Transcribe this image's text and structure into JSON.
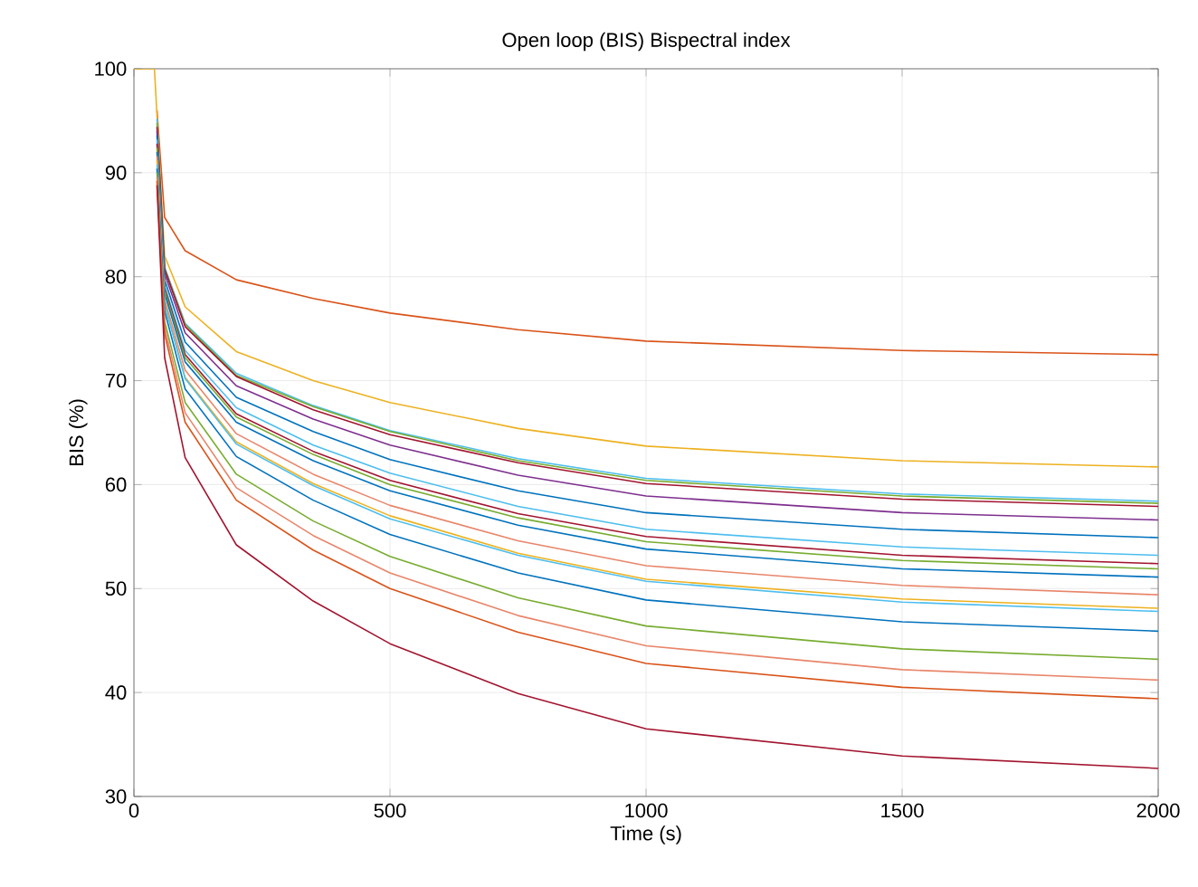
{
  "chart_data": {
    "type": "line",
    "title": "Open loop (BIS) Bispectral index",
    "xlabel": "Time (s)",
    "ylabel": "BIS (%)",
    "x": [
      0,
      40,
      45,
      60,
      100,
      200,
      350,
      500,
      750,
      1000,
      1500,
      2000
    ],
    "xlim": [
      0,
      2000
    ],
    "xticks": [
      0,
      500,
      1000,
      1500,
      2000
    ],
    "ylim": [
      30,
      100
    ],
    "yticks": [
      30,
      40,
      50,
      60,
      70,
      80,
      90,
      100
    ],
    "grid": true,
    "legend": false,
    "marker": "none",
    "line_style": "solid",
    "series": [
      {
        "color": "#d95319",
        "values": [
          null,
          null,
          96.0,
          85.7,
          82.5,
          79.7,
          77.9,
          76.5,
          74.9,
          73.8,
          72.9,
          72.5
        ]
      },
      {
        "color": "#edb120",
        "values": [
          100,
          100,
          95.6,
          82.0,
          77.1,
          72.8,
          70.0,
          67.9,
          65.4,
          63.7,
          62.3,
          61.7
        ]
      },
      {
        "color": "#4dbeee",
        "values": [
          null,
          null,
          95.2,
          80.9,
          75.5,
          70.7,
          67.6,
          65.2,
          62.5,
          60.6,
          59.1,
          58.4
        ]
      },
      {
        "color": "#77ac30",
        "values": [
          null,
          null,
          94.8,
          80.8,
          75.4,
          70.5,
          67.5,
          65.1,
          62.3,
          60.4,
          58.9,
          58.2
        ]
      },
      {
        "color": "#a2142f",
        "values": [
          null,
          null,
          94.4,
          80.7,
          75.2,
          70.4,
          67.2,
          64.8,
          62.1,
          60.1,
          58.6,
          57.9
        ]
      },
      {
        "color": "#7e2f8e",
        "values": [
          null,
          null,
          94.0,
          80.3,
          74.6,
          69.5,
          66.3,
          63.8,
          60.9,
          58.9,
          57.3,
          56.6
        ]
      },
      {
        "color": "#0072bd",
        "values": [
          null,
          null,
          93.6,
          79.7,
          73.7,
          68.4,
          65.1,
          62.4,
          59.4,
          57.3,
          55.7,
          54.9
        ]
      },
      {
        "color": "#4dbeee",
        "values": [
          null,
          null,
          93.2,
          79.1,
          72.9,
          67.4,
          63.8,
          61.1,
          57.9,
          55.7,
          54.0,
          53.2
        ]
      },
      {
        "color": "#a2142f",
        "values": [
          null,
          null,
          92.8,
          78.9,
          72.5,
          66.8,
          63.2,
          60.4,
          57.2,
          55.0,
          53.2,
          52.4
        ]
      },
      {
        "color": "#77ac30",
        "values": [
          null,
          null,
          92.4,
          78.7,
          72.2,
          66.5,
          62.9,
          60.0,
          56.8,
          54.5,
          52.7,
          51.9
        ]
      },
      {
        "color": "#0072bd",
        "values": [
          null,
          null,
          92.0,
          78.4,
          71.8,
          66.0,
          62.3,
          59.4,
          56.1,
          53.8,
          51.9,
          51.1
        ]
      },
      {
        "color": "#e8866a",
        "values": [
          null,
          null,
          91.6,
          77.8,
          71.0,
          64.9,
          61.0,
          58.0,
          54.6,
          52.2,
          50.3,
          49.4
        ]
      },
      {
        "color": "#edb120",
        "values": [
          null,
          null,
          91.2,
          77.4,
          70.3,
          64.1,
          60.1,
          57.0,
          53.4,
          50.9,
          49.0,
          48.1
        ]
      },
      {
        "color": "#4dbeee",
        "values": [
          null,
          null,
          90.8,
          77.3,
          70.2,
          63.9,
          59.9,
          56.7,
          53.2,
          50.7,
          48.7,
          47.8
        ]
      },
      {
        "color": "#0072bd",
        "values": [
          null,
          null,
          90.4,
          76.7,
          69.2,
          62.7,
          58.5,
          55.2,
          51.5,
          48.9,
          46.8,
          45.9
        ]
      },
      {
        "color": "#77ac30",
        "values": [
          null,
          null,
          90.0,
          75.7,
          67.9,
          61.0,
          56.5,
          53.1,
          49.1,
          46.4,
          44.2,
          43.2
        ]
      },
      {
        "color": "#e8866a",
        "values": [
          null,
          null,
          89.6,
          75.1,
          66.9,
          59.7,
          55.1,
          51.5,
          47.4,
          44.5,
          42.2,
          41.2
        ]
      },
      {
        "color": "#d95319",
        "values": [
          null,
          null,
          89.2,
          74.5,
          66.0,
          58.5,
          53.7,
          50.0,
          45.8,
          42.8,
          40.5,
          39.4
        ]
      },
      {
        "color": "#a2142f",
        "values": [
          null,
          null,
          88.8,
          72.2,
          62.6,
          54.2,
          48.8,
          44.7,
          39.9,
          36.5,
          33.9,
          32.7
        ]
      }
    ]
  }
}
